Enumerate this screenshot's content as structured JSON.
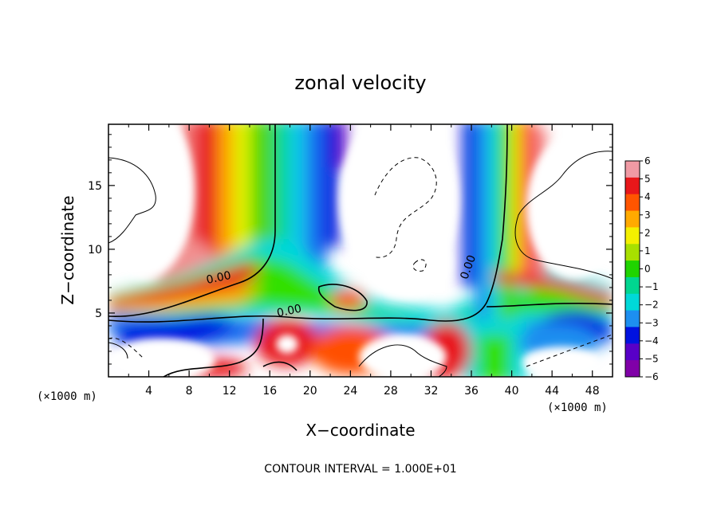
{
  "chart_data": {
    "type": "heatmap",
    "title": "zonal velocity",
    "xlabel": "X−coordinate",
    "ylabel": "Z−coordinate",
    "x_unit_label": "(×1000 m)",
    "y_unit_label": "(×1000 m)",
    "xlim": [
      0,
      50
    ],
    "ylim": [
      0,
      19.8
    ],
    "x_ticks": [
      "4",
      "8",
      "12",
      "16",
      "20",
      "24",
      "28",
      "32",
      "36",
      "40",
      "44",
      "48"
    ],
    "y_ticks": [
      "5",
      "10",
      "15"
    ],
    "colorbar": {
      "ticks": [
        "6",
        "5",
        "4",
        "3",
        "2",
        "1",
        "0",
        "−1",
        "−2",
        "−3",
        "−4",
        "−5",
        "−6"
      ],
      "range": [
        -6,
        6
      ],
      "colors": [
        "#f09aa4",
        "#e8171a",
        "#ff5500",
        "#ffaa00",
        "#f4f000",
        "#a8e000",
        "#20d400",
        "#00d690",
        "#00d8d8",
        "#1d8ff0",
        "#0012e0",
        "#5800c8",
        "#8000a8"
      ]
    },
    "contour_labels": [
      {
        "text": "0.00",
        "x": 11.0,
        "y": 7.5
      },
      {
        "text": "0.00",
        "x": 18.0,
        "y": 4.9
      },
      {
        "text": "0.00",
        "x": 36.0,
        "y": 8.5
      }
    ],
    "footer": "CONTOUR INTERVAL = 1.000E+01",
    "note_values_estimated": "positive (red) ~x 8-12 upper column; negative (blue) ~x 20-24 upper column and ~x 34-36 upper column; green zero-band near z 4-5 across domain"
  }
}
